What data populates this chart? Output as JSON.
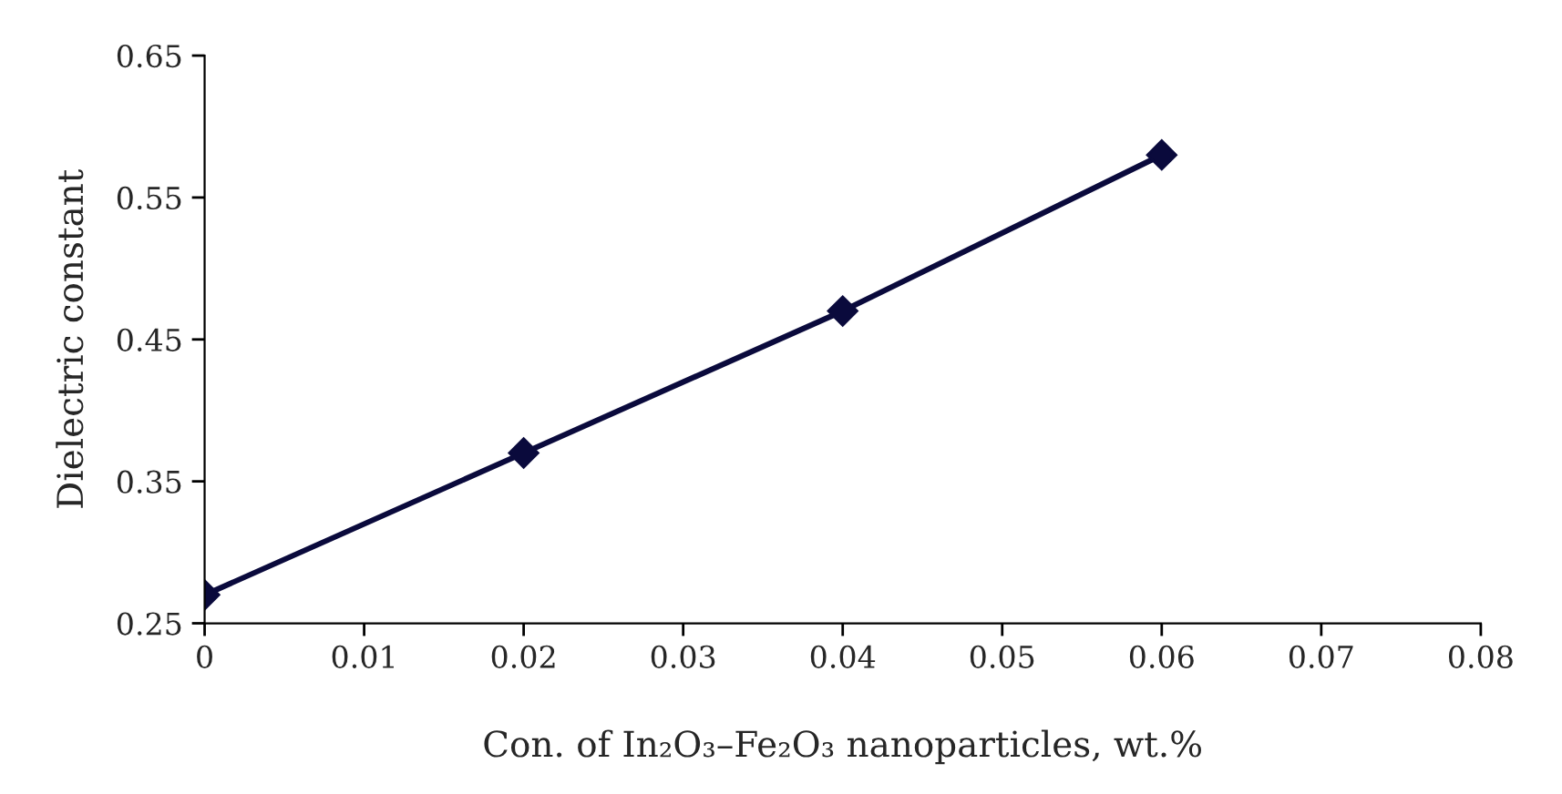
{
  "chart_data": {
    "type": "line",
    "xlabel": "Con. of In₂O₃–Fe₂O₃ nanoparticles, wt.%",
    "ylabel": "Dielectric constant",
    "x": [
      0,
      0.02,
      0.04,
      0.06
    ],
    "series": [
      {
        "color": "#0a0a3c",
        "values": [
          0.27,
          0.37,
          0.47,
          0.58
        ]
      }
    ],
    "xlim": [
      0,
      0.08
    ],
    "xticks": [
      0,
      0.01,
      0.02,
      0.03,
      0.04,
      0.05,
      0.06,
      0.07,
      0.08
    ],
    "ylim": [
      0.25,
      0.65
    ],
    "yticks": [
      0.25,
      0.35,
      0.45,
      0.55,
      0.65
    ],
    "marker": "diamond",
    "line_style": "solid",
    "grid": false,
    "legend": false
  }
}
